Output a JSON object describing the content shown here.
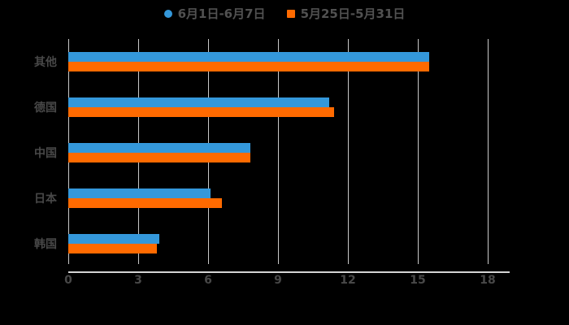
{
  "page": {
    "background": "#000000"
  },
  "chart_data": {
    "type": "bar",
    "orientation": "horizontal",
    "title": "",
    "xlabel": "",
    "ylabel": "",
    "categories": [
      "其他",
      "德国",
      "中国",
      "日本",
      "韩国"
    ],
    "series": [
      {
        "name": "6月1日-6月7日",
        "color": "#3498db",
        "marker": "circle",
        "values": [
          15.5,
          11.2,
          7.8,
          6.1,
          3.9
        ]
      },
      {
        "name": "5月25日-5月31日",
        "color": "#ff6a00",
        "marker": "square",
        "values": [
          15.5,
          11.4,
          7.8,
          6.6,
          3.8
        ]
      }
    ],
    "xticks": [
      0,
      3,
      6,
      9,
      12,
      15,
      18
    ],
    "xlim": [
      0,
      18
    ],
    "grid": true,
    "legend_position": "top",
    "gridline_color": "#c9c9c9",
    "axis_line_color": "#d4d4d4",
    "text_color": "#484848"
  }
}
